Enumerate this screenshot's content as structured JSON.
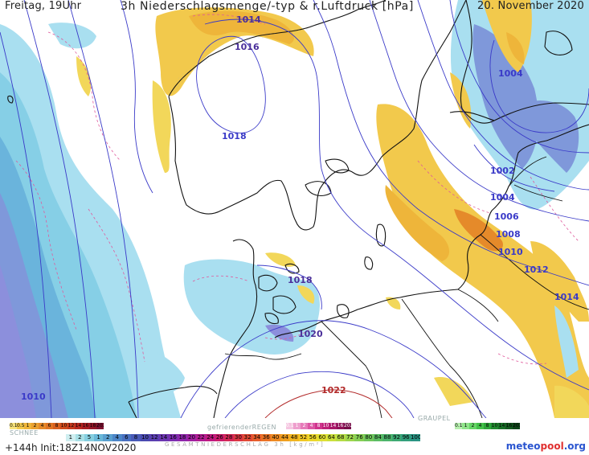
{
  "header": {
    "left": "Freitag, 19Uhr",
    "title": "3h Niederschlagsmenge/-typ & r.Luftdruck [hPa]",
    "date": "20. November 2020"
  },
  "isobars": {
    "labels": [
      "1014",
      "1016",
      "1018",
      "1004",
      "1002",
      "1004",
      "1006",
      "1008",
      "1010",
      "1012",
      "1014",
      "1018",
      "1020",
      "1022",
      "1010"
    ]
  },
  "legend": {
    "schnee_label": "SCHNEE",
    "schnee_values": [
      "0.1",
      "0.5",
      "1",
      "2",
      "4",
      "6",
      "8",
      "10",
      "12",
      "14",
      "16",
      "18",
      "2025+"
    ],
    "freezing_label": "gefrierenderREGEN",
    "freezing_values": [
      "0.1",
      "1",
      "2",
      "4",
      "8",
      "10",
      "14",
      "16",
      "2025+"
    ],
    "graupel_label": "GRAUPEL",
    "graupel_values": [
      "0.1",
      "1",
      "2",
      "4",
      "8",
      "10",
      "14",
      "16",
      "2025+"
    ],
    "total_values": [
      "1",
      "2",
      "5",
      "1",
      "2",
      "4",
      "6",
      "8",
      "10",
      "12",
      "14",
      "16",
      "18",
      "20",
      "22",
      "24",
      "26",
      "28",
      "30",
      "32",
      "34",
      "36",
      "40",
      "44",
      "48",
      "52",
      "56",
      "60",
      "64",
      "68",
      "72",
      "76",
      "80",
      "84",
      "88",
      "92",
      "96",
      "100"
    ],
    "total_label": "GESAMTNIEDERSCHLAG 3h [kg/m²]",
    "colors": {
      "snow": [
        "#f7e27a",
        "#f2c94c",
        "#eeb53a",
        "#eaa030",
        "#e58a2a",
        "#e07525",
        "#d86020",
        "#cf4b1e",
        "#c5391e",
        "#b8281f",
        "#a81c22",
        "#941628",
        "#7d1130"
      ],
      "freezing": [
        "#f5c5e0",
        "#ee9fcd",
        "#e67ab9",
        "#dc55a3",
        "#cf338c",
        "#bf2079",
        "#a81668",
        "#8f1158",
        "#760d49"
      ],
      "graupel": [
        "#b8f0b0",
        "#8fe48a",
        "#66d566",
        "#44c24a",
        "#2ea63a",
        "#228a30",
        "#197027",
        "#13591f",
        "#0e4418"
      ],
      "total": [
        "#cfeef0",
        "#a9e0e6",
        "#86cfe0",
        "#6ab8d8",
        "#5aa0d0",
        "#4d86c8",
        "#4a70c0",
        "#4a5bb8",
        "#4a4ab0",
        "#5a3fb0",
        "#6b36b0",
        "#7c2eb0",
        "#8e27ab",
        "#a021a0",
        "#b21c92",
        "#c01a80",
        "#cc1d6c",
        "#d52857",
        "#dc3744",
        "#e24a36",
        "#e75e2c",
        "#eb7326",
        "#ee8a22",
        "#f0a020",
        "#f2b520",
        "#f1c824",
        "#ecd72c",
        "#e0e034",
        "#cce03c",
        "#b6dc44",
        "#9ed64c",
        "#86cf54",
        "#70c65c",
        "#5cbd64",
        "#4cb46c",
        "#3eaa74",
        "#339f7c",
        "#2a9484"
      ]
    }
  },
  "footer": {
    "run_info": "+144h  Init:18Z14NOV2020",
    "brand_a": "meteo",
    "brand_b": "pool",
    "brand_c": ".org"
  }
}
